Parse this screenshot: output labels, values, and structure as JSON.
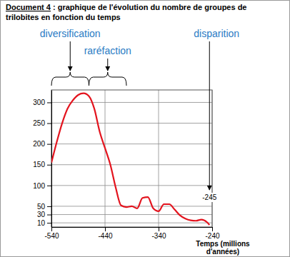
{
  "chart_data": {
    "type": "line",
    "title": "Document 4",
    "subtitle": ": graphique de l'évolution du nombre de groupes de trilobites en fonction du temps",
    "x_label": [
      "Temps (millions",
      "d'années)"
    ],
    "x": [
      -540,
      -530,
      -520,
      -510,
      -500,
      -490,
      -480,
      -470,
      -460,
      -450,
      -440,
      -430,
      -420,
      -410,
      -400,
      -390,
      -380,
      -370,
      -360,
      -350,
      -340,
      -330,
      -320,
      -310,
      -300,
      -290,
      -280,
      -270,
      -260,
      -250,
      -245
    ],
    "values": [
      155,
      205,
      250,
      285,
      305,
      318,
      322,
      315,
      285,
      230,
      190,
      150,
      95,
      52,
      48,
      50,
      45,
      70,
      72,
      45,
      38,
      55,
      55,
      42,
      28,
      20,
      16,
      15,
      18,
      12,
      5
    ],
    "color": "#e3141e",
    "xlim": [
      -540,
      -240
    ],
    "xticks": [
      -540,
      -440,
      -340,
      -240
    ],
    "ylim": [
      0,
      330
    ],
    "yticks": [
      10,
      30,
      50,
      100,
      150,
      200,
      250,
      300
    ],
    "grid": true,
    "annotations": [
      {
        "text": "diversification",
        "x": [
          -540,
          -470
        ]
      },
      {
        "text": "raréfaction",
        "x": [
          -470,
          -400
        ]
      },
      {
        "text": "disparition",
        "x": -245,
        "x_label": "-245"
      }
    ]
  }
}
